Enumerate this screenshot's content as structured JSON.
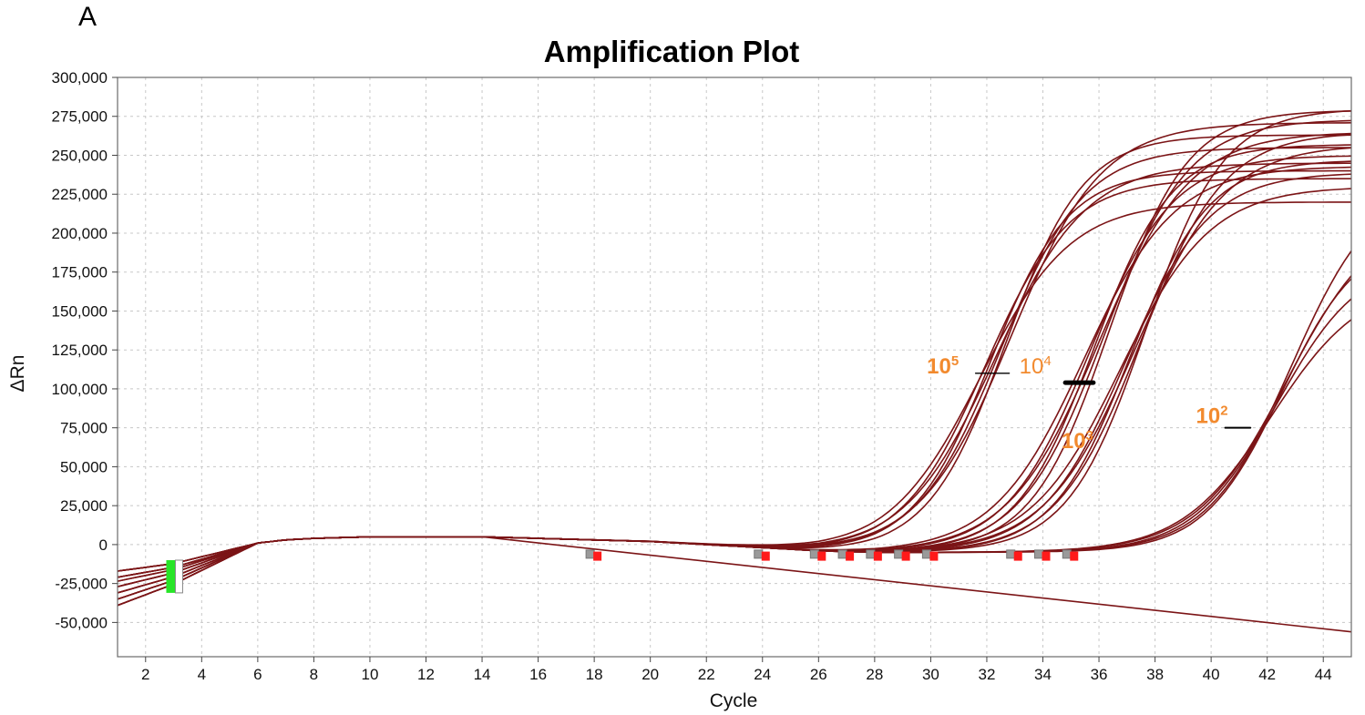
{
  "panel_label": "A",
  "chart_data": {
    "type": "line",
    "title": "Amplification Plot",
    "xlabel": "Cycle",
    "ylabel": "ΔRn",
    "xlim": [
      1,
      45
    ],
    "ylim": [
      -72000,
      300000
    ],
    "xticks": [
      2,
      4,
      6,
      8,
      10,
      12,
      14,
      16,
      18,
      20,
      22,
      24,
      26,
      28,
      30,
      32,
      34,
      36,
      38,
      40,
      42,
      44
    ],
    "yticks": [
      300000,
      275000,
      250000,
      225000,
      200000,
      175000,
      150000,
      125000,
      100000,
      75000,
      50000,
      25000,
      0,
      -25000,
      -50000
    ],
    "ytick_labels": [
      "300,000",
      "275,000",
      "250,000",
      "225,000",
      "200,000",
      "175,000",
      "150,000",
      "125,000",
      "100,000",
      "75,000",
      "50,000",
      "25,000",
      "0",
      "-25,000",
      "-50,000"
    ],
    "grid": true,
    "line_color": "#7b1416",
    "baseline_points": {
      "x": [
        1,
        2,
        3,
        4,
        5,
        6,
        7,
        8,
        10,
        12,
        14,
        16,
        18,
        20,
        22,
        24,
        26,
        28
      ],
      "y": [
        -25000,
        -21000,
        -17000,
        -11000,
        -5000,
        1000,
        3000,
        4000,
        5000,
        5000,
        5000,
        4000,
        3000,
        2000,
        0,
        -2000,
        -4000,
        -5000
      ]
    },
    "groups": [
      {
        "label": "10^5",
        "ct": 32.4,
        "start_series": [
          -18000,
          -22000,
          -26000,
          -30000,
          -34000,
          -38000
        ],
        "plateaus": [
          225000,
          240000,
          245000,
          250000,
          260000,
          268000,
          276000
        ]
      },
      {
        "label": "10^4",
        "ct": 36.0,
        "plateaus": [
          248000,
          255000,
          262000,
          270000,
          278000,
          284000
        ]
      },
      {
        "label": "10^3",
        "ct": 37.3,
        "plateaus": [
          235000,
          244000,
          252000,
          262000,
          270000,
          285000
        ]
      },
      {
        "label": "10^2",
        "ct": 42.6,
        "plateaus": [
          175000,
          190000,
          205000,
          220000,
          240000
        ]
      }
    ],
    "drift_line": {
      "x": [
        14,
        45
      ],
      "y": [
        5000,
        -56000
      ]
    },
    "annotations": [
      {
        "base": "10",
        "exp": "5",
        "x": 31.0,
        "y": 110000
      },
      {
        "base": "10",
        "exp": "4",
        "x": 34.3,
        "y": 110000
      },
      {
        "base": "10",
        "exp": "3",
        "x": 35.8,
        "y": 62000
      },
      {
        "base": "10",
        "exp": "2",
        "x": 40.6,
        "y": 78000
      }
    ],
    "threshold_markers": [
      {
        "x": 2.9,
        "color": "#27e527"
      },
      {
        "x": 18.0,
        "color": "#ff1a1a"
      },
      {
        "x": 24.0,
        "color": "#ff1a1a"
      },
      {
        "x": 26.0,
        "color": "#ff1a1a"
      },
      {
        "x": 27.0,
        "color": "#ff1a1a"
      },
      {
        "x": 28.0,
        "color": "#ff1a1a"
      },
      {
        "x": 29.0,
        "color": "#ff1a1a"
      },
      {
        "x": 30.0,
        "color": "#ff1a1a"
      },
      {
        "x": 33.0,
        "color": "#ff1a1a"
      },
      {
        "x": 34.0,
        "color": "#ff1a1a"
      },
      {
        "x": 35.0,
        "color": "#ff1a1a"
      }
    ]
  }
}
